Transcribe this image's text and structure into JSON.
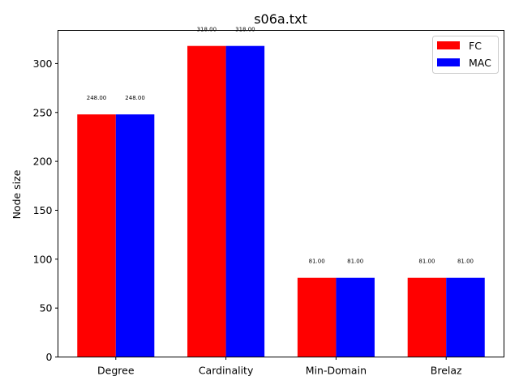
{
  "chart_data": {
    "type": "bar",
    "title": "s06a.txt",
    "xlabel": "",
    "ylabel": "Node size",
    "categories": [
      "Degree",
      "Cardinality",
      "Min-Domain",
      "Brelaz"
    ],
    "series": [
      {
        "name": "FC",
        "color": "#ff0000",
        "values": [
          248,
          318,
          81,
          81
        ],
        "labels": [
          "248.00",
          "318.00",
          "81.00",
          "81.00"
        ]
      },
      {
        "name": "MAC",
        "color": "#0000ff",
        "values": [
          248,
          318,
          81,
          81
        ],
        "labels": [
          "248.00",
          "318.00",
          "81.00",
          "81.00"
        ]
      }
    ],
    "ylim": [
      0,
      333.9
    ],
    "yticks": [
      0,
      50,
      100,
      150,
      200,
      250,
      300
    ],
    "legend": "top-right",
    "grid": false
  }
}
